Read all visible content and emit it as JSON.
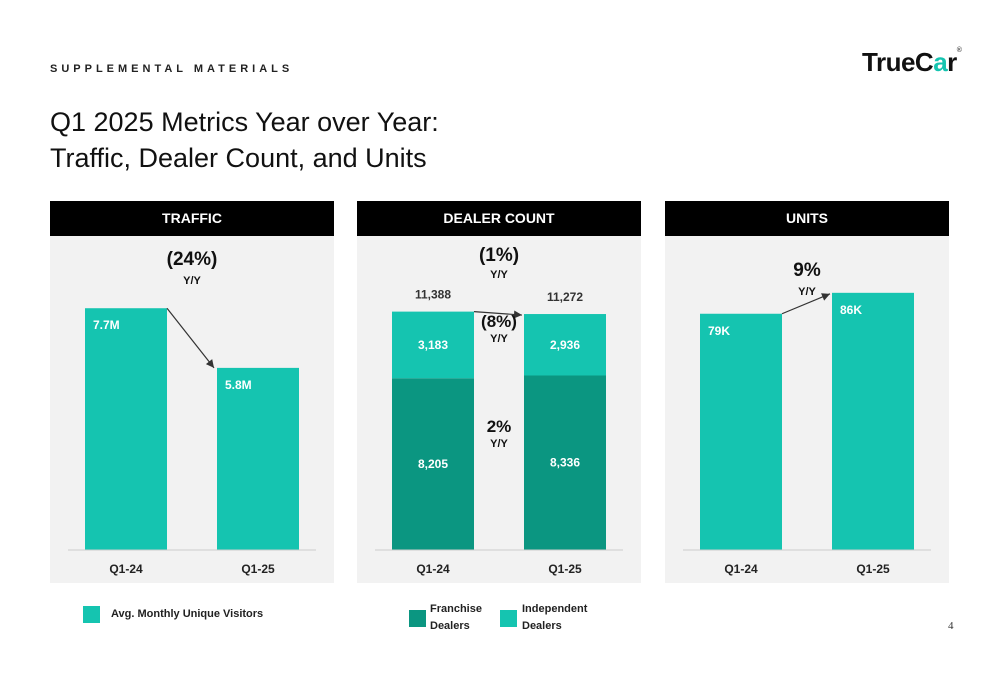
{
  "header": {
    "supplemental": "SUPPLEMENTAL MATERIALS",
    "logo_main": "TrueCar",
    "title_line1": "Q1 2025 Metrics Year over Year:",
    "title_line2": "Traffic, Dealer Count, and Units"
  },
  "colors": {
    "teal": "#15c4b0",
    "dark_teal": "#0b9681",
    "panel_bg": "#f2f2f2"
  },
  "chart_data": [
    {
      "type": "bar",
      "title": "TRAFFIC",
      "categories": [
        "Q1-24",
        "Q1-25"
      ],
      "series": [
        {
          "name": "Avg. Monthly Unique Visitors",
          "values": [
            7.7,
            5.8
          ],
          "labels": [
            "7.7M",
            "5.8M"
          ]
        }
      ],
      "change": {
        "value": "(24%)",
        "unit": "Y/Y"
      },
      "ylim": [
        0,
        10
      ]
    },
    {
      "type": "bar",
      "title": "DEALER COUNT",
      "stacked": true,
      "categories": [
        "Q1-24",
        "Q1-25"
      ],
      "series": [
        {
          "name": "Franchise Dealers",
          "values": [
            8205,
            8336
          ],
          "labels": [
            "8,205",
            "8,336"
          ]
        },
        {
          "name": "Independent Dealers",
          "values": [
            3183,
            2936
          ],
          "labels": [
            "3,183",
            "2,936"
          ]
        }
      ],
      "totals": {
        "values": [
          11388,
          11272
        ],
        "labels": [
          "11,388",
          "11,272"
        ]
      },
      "changes": {
        "total": {
          "value": "(1%)",
          "unit": "Y/Y"
        },
        "independent": {
          "value": "(8%)",
          "unit": "Y/Y"
        },
        "franchise": {
          "value": "2%",
          "unit": "Y/Y"
        }
      },
      "ylim": [
        0,
        15000
      ]
    },
    {
      "type": "bar",
      "title": "UNITS",
      "categories": [
        "Q1-24",
        "Q1-25"
      ],
      "series": [
        {
          "name": "Units",
          "values": [
            79,
            86
          ],
          "labels": [
            "79K",
            "86K"
          ]
        }
      ],
      "change": {
        "value": "9%",
        "unit": "Y/Y"
      },
      "ylim": [
        0,
        105
      ]
    }
  ],
  "legend": {
    "visitors": "Avg. Monthly Unique Visitors",
    "franchise_l1": "Franchise",
    "franchise_l2": "Dealers",
    "independent_l1": "Independent",
    "independent_l2": "Dealers"
  },
  "page_number": "4"
}
